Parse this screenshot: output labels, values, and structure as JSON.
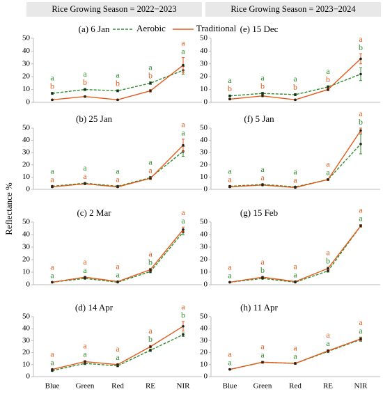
{
  "headers": [
    "Rice Growing Season = 2022−2023",
    "Rice Growing Season = 2023−2024"
  ],
  "y_label": "Reflectance %",
  "chart_data": [
    {
      "type": "line",
      "title": "(a) 6 Jan",
      "legend": true,
      "categories": [
        null,
        null,
        null,
        null,
        null
      ],
      "ylim": [
        0,
        50
      ],
      "yticks": [
        0,
        10,
        20,
        30,
        40,
        50
      ],
      "series": [
        {
          "name": "Aerobic",
          "color": "#2e8b2e",
          "dash": true,
          "values": [
            7,
            10,
            9,
            15,
            25
          ],
          "errors": [
            0.8,
            0.8,
            0.8,
            1,
            3
          ],
          "letters": [
            "a",
            "a",
            "a",
            "a",
            "a"
          ]
        },
        {
          "name": "Traditional",
          "color": "#e35a1a",
          "dash": false,
          "values": [
            2,
            4.5,
            2,
            9,
            29
          ],
          "errors": [
            0.5,
            0.5,
            0.5,
            1,
            6
          ],
          "letters": [
            "b",
            "b",
            "b",
            "b",
            "a"
          ]
        }
      ]
    },
    {
      "type": "line",
      "title": "(b) 25 Jan",
      "categories": [
        null,
        null,
        null,
        null,
        null
      ],
      "ylim": [
        0,
        50
      ],
      "yticks": [
        0,
        10,
        20,
        30,
        40,
        50
      ],
      "series": [
        {
          "color": "#2e8b2e",
          "dash": true,
          "values": [
            2.5,
            5,
            2.5,
            9.5,
            31
          ],
          "errors": [
            0.5,
            0.5,
            0.5,
            1,
            4
          ],
          "letters": [
            "a",
            "a",
            "a",
            "a",
            "a"
          ]
        },
        {
          "color": "#e35a1a",
          "dash": false,
          "values": [
            2,
            4.5,
            2,
            9,
            36
          ],
          "errors": [
            0.5,
            0.5,
            0.5,
            1,
            5
          ],
          "letters": [
            "a",
            "a",
            "a",
            "a",
            "a"
          ]
        }
      ]
    },
    {
      "type": "line",
      "title": "(c) 2 Mar",
      "categories": [
        null,
        null,
        null,
        null,
        null
      ],
      "ylim": [
        0,
        50
      ],
      "yticks": [
        0,
        10,
        20,
        30,
        40,
        50
      ],
      "series": [
        {
          "color": "#2e8b2e",
          "dash": true,
          "values": [
            2,
            5,
            2,
            10.5,
            42
          ],
          "errors": [
            0.3,
            0.5,
            0.3,
            1,
            2
          ],
          "letters": [
            "a",
            "a",
            "a",
            "b",
            "a"
          ]
        },
        {
          "color": "#e35a1a",
          "dash": false,
          "values": [
            2,
            6,
            2.5,
            12,
            44
          ],
          "errors": [
            0.3,
            0.5,
            0.3,
            1,
            2
          ],
          "letters": [
            "a",
            "a",
            "a",
            "a",
            "a"
          ]
        }
      ]
    },
    {
      "type": "line",
      "title": "(d) 14 Apr",
      "categories": [
        "Blue",
        "Green",
        "Red",
        "RE",
        "NIR"
      ],
      "ylim": [
        0,
        50
      ],
      "yticks": [
        0,
        10,
        20,
        30,
        40,
        50
      ],
      "series": [
        {
          "color": "#2e8b2e",
          "dash": true,
          "values": [
            5,
            11,
            9,
            22,
            35
          ],
          "errors": [
            0.5,
            1,
            0.8,
            1,
            1.5
          ],
          "letters": [
            "a",
            "a",
            "a",
            "b",
            "b"
          ]
        },
        {
          "color": "#e35a1a",
          "dash": false,
          "values": [
            6,
            12.5,
            10,
            25,
            42
          ],
          "errors": [
            0.5,
            1,
            0.8,
            1,
            4
          ],
          "letters": [
            "a",
            "a",
            "a",
            "a",
            "a"
          ]
        }
      ]
    },
    {
      "type": "line",
      "title": "(e) 15 Dec",
      "categories": [
        null,
        null,
        null,
        null,
        null
      ],
      "ylim": [
        0,
        50
      ],
      "yticks": [
        0,
        10,
        20,
        30,
        40,
        50
      ],
      "series": [
        {
          "color": "#2e8b2e",
          "dash": true,
          "values": [
            5,
            7,
            6,
            12,
            22
          ],
          "errors": [
            0.8,
            0.8,
            0.8,
            1,
            5
          ],
          "letters": [
            "a",
            "a",
            "a",
            "a",
            "b"
          ]
        },
        {
          "color": "#e35a1a",
          "dash": false,
          "values": [
            2.5,
            5,
            2,
            10,
            34
          ],
          "errors": [
            0.5,
            0.5,
            0.5,
            1,
            4
          ],
          "letters": [
            "b",
            "b",
            "b",
            "b",
            "a"
          ]
        }
      ]
    },
    {
      "type": "line",
      "title": "(f) 5 Jan",
      "categories": [
        null,
        null,
        null,
        null,
        null
      ],
      "ylim": [
        0,
        50
      ],
      "yticks": [
        0,
        10,
        20,
        30,
        40,
        50
      ],
      "series": [
        {
          "color": "#2e8b2e",
          "dash": true,
          "values": [
            2.5,
            4,
            2,
            8,
            37
          ],
          "errors": [
            0.5,
            0.5,
            0.5,
            0.8,
            8
          ],
          "letters": [
            "a",
            "a",
            "a",
            "a",
            "b"
          ]
        },
        {
          "color": "#e35a1a",
          "dash": false,
          "values": [
            2,
            3.5,
            1.5,
            8,
            48
          ],
          "errors": [
            0.5,
            0.5,
            0.5,
            0.8,
            2
          ],
          "letters": [
            "a",
            "a",
            "a",
            "a",
            "a"
          ]
        }
      ]
    },
    {
      "type": "line",
      "title": "(g) 15 Feb",
      "categories": [
        null,
        null,
        null,
        null,
        null
      ],
      "ylim": [
        0,
        50
      ],
      "yticks": [
        0,
        10,
        20,
        30,
        40,
        50
      ],
      "series": [
        {
          "color": "#2e8b2e",
          "dash": true,
          "values": [
            2,
            5,
            2,
            11,
            47
          ],
          "errors": [
            0.3,
            0.5,
            0.3,
            1,
            1
          ],
          "letters": [
            "a",
            "b",
            "a",
            "b",
            "a"
          ]
        },
        {
          "color": "#e35a1a",
          "dash": false,
          "values": [
            2,
            6,
            2.5,
            13,
            47
          ],
          "errors": [
            0.3,
            0.5,
            0.3,
            1,
            1
          ],
          "letters": [
            "a",
            "a",
            "a",
            "a",
            "a"
          ]
        }
      ]
    },
    {
      "type": "line",
      "title": "(h) 11 Apr",
      "categories": [
        "Blue",
        "Green",
        "Red",
        "RE",
        "NIR"
      ],
      "ylim": [
        0,
        50
      ],
      "yticks": [
        0,
        10,
        20,
        30,
        40,
        50
      ],
      "series": [
        {
          "color": "#2e8b2e",
          "dash": true,
          "values": [
            6,
            12,
            11,
            21,
            31
          ],
          "errors": [
            0.5,
            0.8,
            0.8,
            1,
            1.5
          ],
          "letters": [
            "a",
            "a",
            "a",
            "a",
            "a"
          ]
        },
        {
          "color": "#e35a1a",
          "dash": false,
          "values": [
            6,
            12,
            11,
            21.5,
            31.5
          ],
          "errors": [
            0.5,
            0.8,
            0.8,
            1,
            1.5
          ],
          "letters": [
            "a",
            "a",
            "a",
            "a",
            "a"
          ]
        }
      ]
    }
  ]
}
